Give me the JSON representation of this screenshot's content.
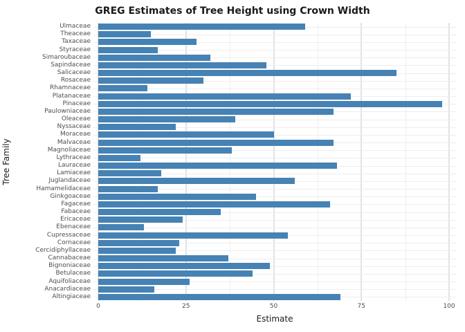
{
  "title": "GREG Estimates of Tree Height using Crown Width",
  "x_axis": {
    "label": "Estimate",
    "min": 0,
    "max": 100,
    "ticks": [
      0,
      25,
      50,
      75,
      100
    ],
    "minor_ticks": [
      12.5,
      37.5,
      62.5,
      87.5
    ]
  },
  "y_axis": {
    "label": "Tree Family"
  },
  "colors": {
    "bar": "#4682B4",
    "grid_major": "#e2e2e2",
    "grid_minor": "#efefef",
    "grid_row": "#ededed",
    "tick_text": "#4d4d4d",
    "title_text": "#1a1a1a"
  },
  "chart_data": {
    "type": "bar",
    "orientation": "horizontal",
    "title": "GREG Estimates of Tree Height using Crown Width",
    "xlabel": "Estimate",
    "ylabel": "Tree Family",
    "xlim": [
      0,
      100
    ],
    "grid": true,
    "categories": [
      "Ulmaceae",
      "Theaceae",
      "Taxaceae",
      "Styraceae",
      "Simaroubaceae",
      "Sapindaceae",
      "Salicaceae",
      "Rosaceae",
      "Rhamnaceae",
      "Platanaceae",
      "Pinaceae",
      "Paulowniaceae",
      "Oleaceae",
      "Nyssaceae",
      "Moraceae",
      "Malvaceae",
      "Magnoliaceae",
      "Lythraceae",
      "Lauraceae",
      "Lamiaceae",
      "Juglandaceae",
      "Hamamelidaceae",
      "Ginkgoaceae",
      "Fagaceae",
      "Fabaceae",
      "Ericaceae",
      "Ebenaceae",
      "Cupressaceae",
      "Cornaceae",
      "Cercidiphyllaceae",
      "Cannabaceae",
      "Bignoniaceae",
      "Betulaceae",
      "Aquifoliaceae",
      "Anacardiaceae",
      "Altingiaceae"
    ],
    "values": [
      59,
      15,
      28,
      17,
      32,
      48,
      85,
      30,
      14,
      72,
      98,
      67,
      39,
      22,
      50,
      67,
      38,
      12,
      68,
      18,
      56,
      17,
      45,
      66,
      35,
      24,
      13,
      54,
      23,
      22,
      37,
      49,
      44,
      26,
      16,
      69
    ]
  }
}
